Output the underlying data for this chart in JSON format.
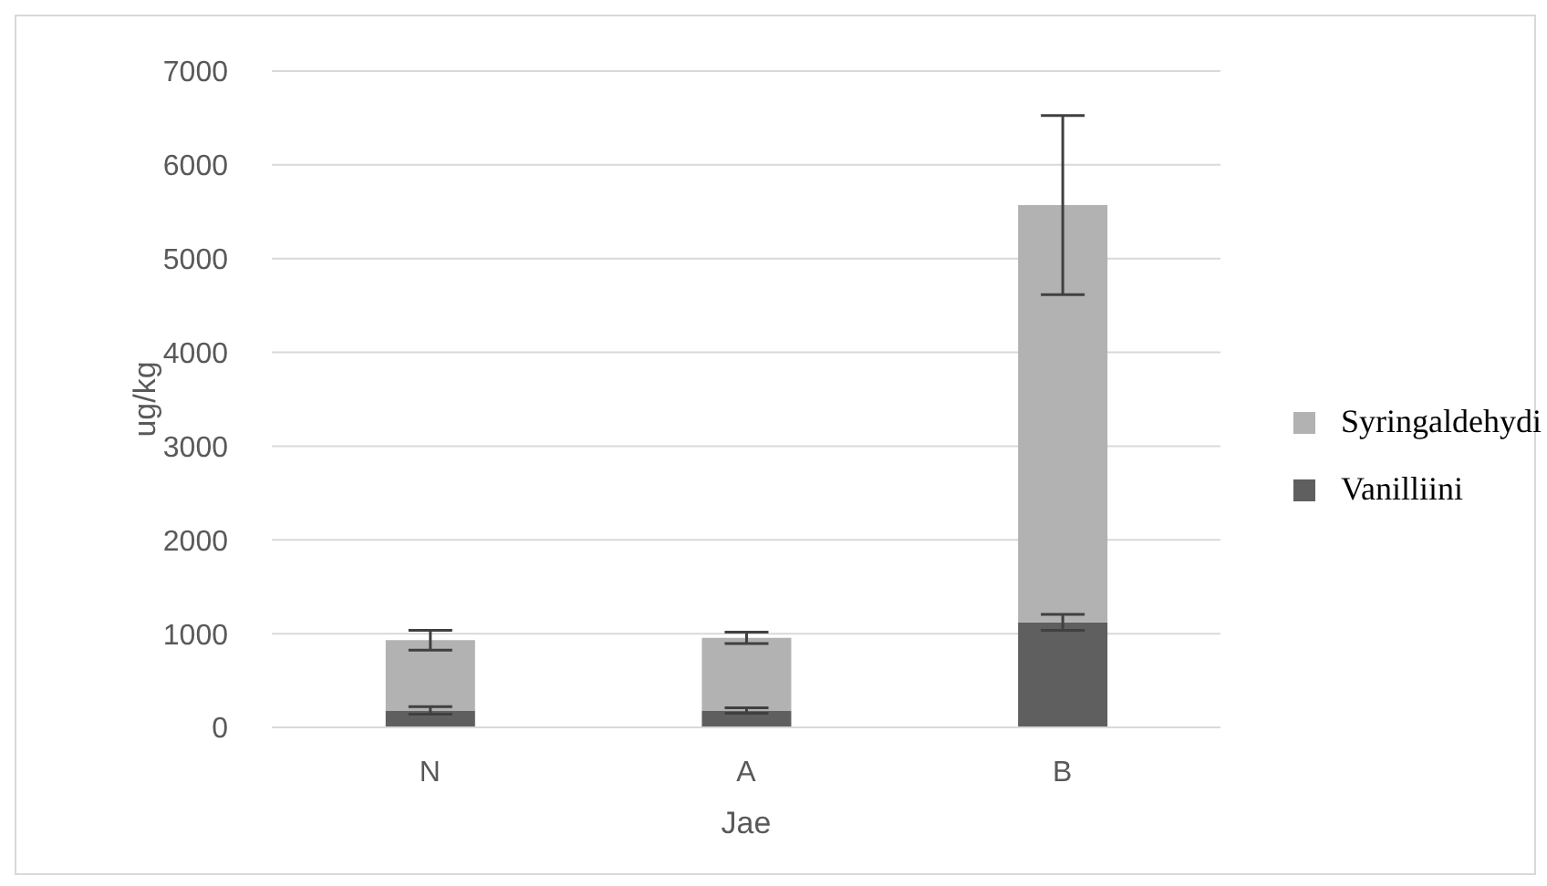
{
  "chart_data": {
    "type": "bar",
    "stacked": true,
    "xlabel": "Jae",
    "ylabel": "ug/kg",
    "categories": [
      "N",
      "A",
      "B"
    ],
    "series": [
      {
        "name": "Vanilliini",
        "color": "#5f5f5f",
        "values": [
          180,
          180,
          1120
        ],
        "errors": [
          40,
          30,
          85
        ]
      },
      {
        "name": "Syringaldehydi",
        "color": "#b2b2b2",
        "values": [
          750,
          775,
          4450
        ],
        "errors": [
          105,
          60,
          955
        ]
      }
    ],
    "ylim": [
      0,
      7000
    ],
    "yticks": [
      0,
      1000,
      2000,
      3000,
      4000,
      5000,
      6000,
      7000
    ],
    "grid": "y",
    "legend": "right"
  }
}
